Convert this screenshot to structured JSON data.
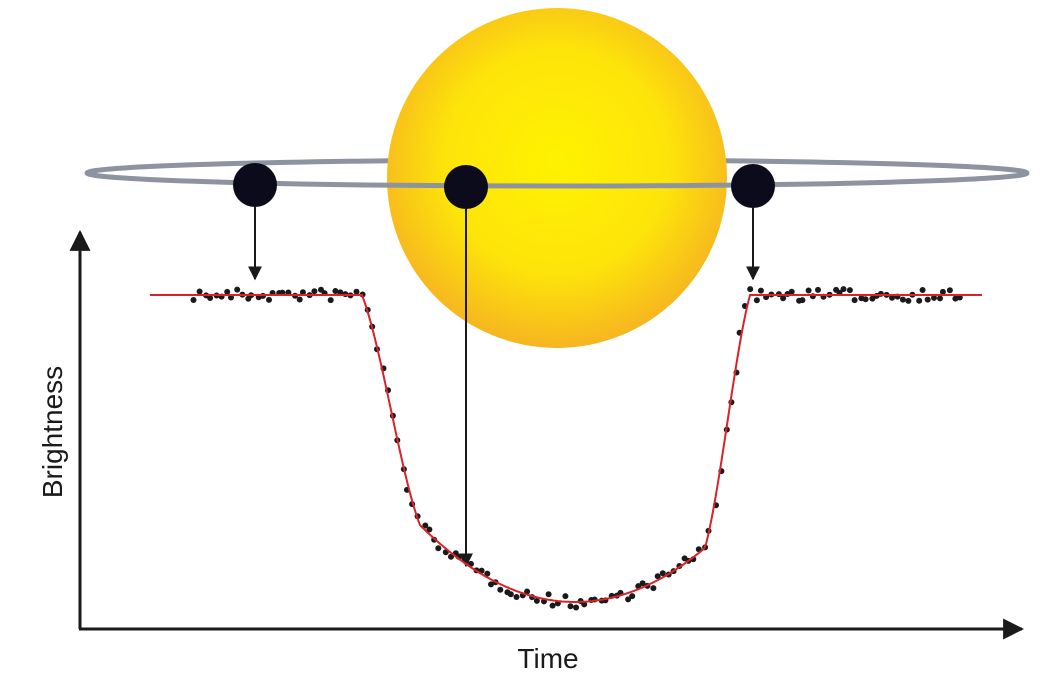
{
  "axes": {
    "y_label": "Brightness",
    "x_label": "Time"
  }
}
